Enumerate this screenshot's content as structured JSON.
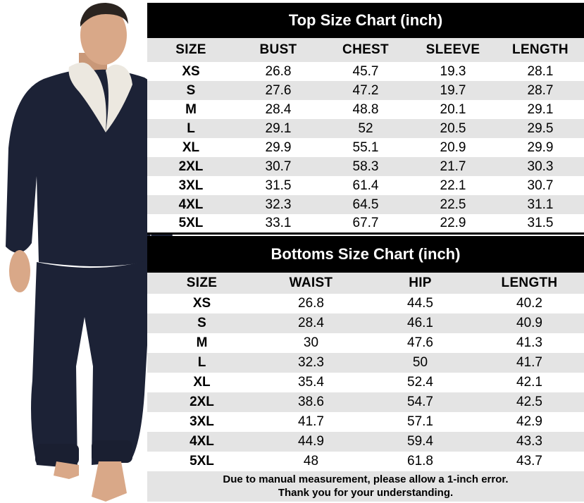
{
  "top_chart": {
    "title": "Top Size Chart (inch)",
    "headers": [
      "SIZE",
      "BUST",
      "CHEST",
      "SLEEVE",
      "LENGTH"
    ],
    "rows": [
      [
        "XS",
        "26.8",
        "45.7",
        "19.3",
        "28.1"
      ],
      [
        "S",
        "27.6",
        "47.2",
        "19.7",
        "28.7"
      ],
      [
        "M",
        "28.4",
        "48.8",
        "20.1",
        "29.1"
      ],
      [
        "L",
        "29.1",
        "52",
        "20.5",
        "29.5"
      ],
      [
        "XL",
        "29.9",
        "55.1",
        "20.9",
        "29.9"
      ],
      [
        "2XL",
        "30.7",
        "58.3",
        "21.7",
        "30.3"
      ],
      [
        "3XL",
        "31.5",
        "61.4",
        "22.1",
        "30.7"
      ],
      [
        "4XL",
        "32.3",
        "64.5",
        "22.5",
        "31.1"
      ],
      [
        "5XL",
        "33.1",
        "67.7",
        "22.9",
        "31.5"
      ]
    ]
  },
  "bottom_chart": {
    "title": "Bottoms Size Chart (inch)",
    "headers": [
      "SIZE",
      "WAIST",
      "HIP",
      "LENGTH"
    ],
    "rows": [
      [
        "XS",
        "26.8",
        "44.5",
        "40.2"
      ],
      [
        "S",
        "28.4",
        "46.1",
        "40.9"
      ],
      [
        "M",
        "30",
        "47.6",
        "41.3"
      ],
      [
        "L",
        "32.3",
        "50",
        "41.7"
      ],
      [
        "XL",
        "35.4",
        "52.4",
        "42.1"
      ],
      [
        "2XL",
        "38.6",
        "54.7",
        "42.5"
      ],
      [
        "3XL",
        "41.7",
        "57.1",
        "42.9"
      ],
      [
        "4XL",
        "44.9",
        "59.4",
        "43.3"
      ],
      [
        "5XL",
        "48",
        "61.8",
        "43.7"
      ]
    ]
  },
  "note": {
    "line1": "Due to manual measurement, please allow a 1-inch error.",
    "line2": "Thank you for your understanding."
  },
  "colors": {
    "header_bg": "#000000",
    "header_text": "#ffffff",
    "row_shade": "#e4e4e4",
    "garment": "#1c2236",
    "collar": "#ece8e0",
    "skin": "#d9a888"
  },
  "icons": {
    "model": "model-wearing-navy-fleece-pajama-set"
  }
}
